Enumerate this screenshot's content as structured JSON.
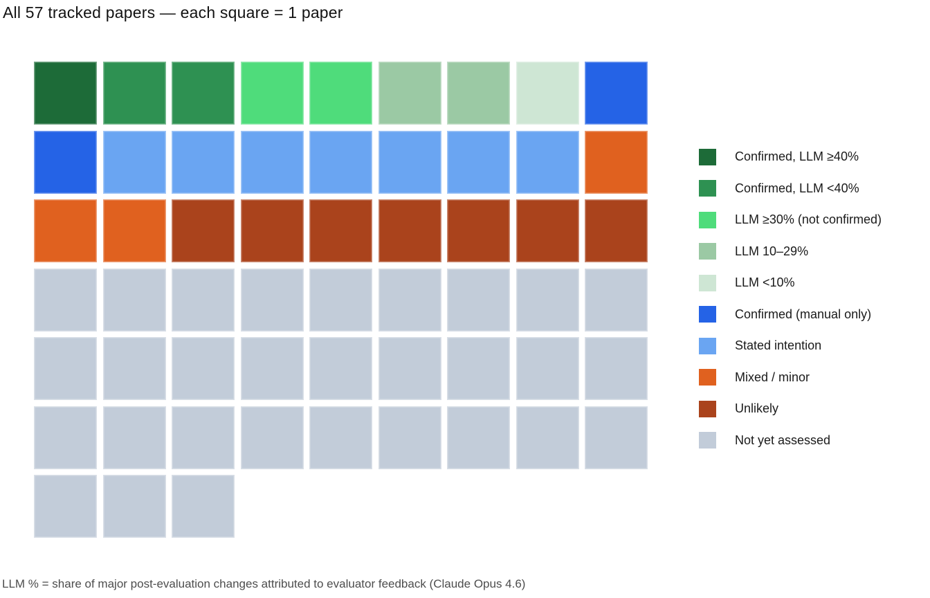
{
  "title": "All 57 tracked papers — each square = 1 paper",
  "footnote": "LLM % = share of major post-evaluation changes attributed to evaluator feedback (Claude Opus 4.6)",
  "chart_data": {
    "type": "waffle",
    "title": "All 57 tracked papers — each square = 1 paper",
    "total_squares": 57,
    "square_unit": "1 paper",
    "grid": {
      "columns": 9,
      "rows": 7,
      "fill_order": "row-major, top-left to bottom-right",
      "last_row_squares": 3
    },
    "categories": [
      "Confirmed, LLM ≥40%",
      "Confirmed, LLM <40%",
      "LLM ≥30% (not confirmed)",
      "LLM 10–29%",
      "LLM <10%",
      "Confirmed (manual only)",
      "Stated intention",
      "Mixed / minor",
      "Unlikely",
      "Not yet assessed"
    ],
    "values": [
      1,
      2,
      2,
      2,
      1,
      2,
      7,
      3,
      7,
      30
    ],
    "colors": [
      "#1d6b38",
      "#2e9152",
      "#4fdc7b",
      "#9bc9a4",
      "#cee6d4",
      "#2563e6",
      "#6aa5f2",
      "#e0611f",
      "#aa431c",
      "#c2ccd9"
    ],
    "legend_position": "right",
    "footnote": "LLM % = share of major post-evaluation changes attributed to evaluator feedback (Claude Opus 4.6)"
  },
  "legend": {
    "items": [
      {
        "label": "Confirmed, LLM ≥40%",
        "color": "#1d6b38",
        "count": 1
      },
      {
        "label": "Confirmed, LLM <40%",
        "color": "#2e9152",
        "count": 2
      },
      {
        "label": "LLM ≥30% (not confirmed)",
        "color": "#4fdc7b",
        "count": 2
      },
      {
        "label": "LLM 10–29%",
        "color": "#9bc9a4",
        "count": 2
      },
      {
        "label": "LLM <10%",
        "color": "#cee6d4",
        "count": 1
      },
      {
        "label": "Confirmed (manual only)",
        "color": "#2563e6",
        "count": 2
      },
      {
        "label": "Stated intention",
        "color": "#6aa5f2",
        "count": 7
      },
      {
        "label": "Mixed / minor",
        "color": "#e0611f",
        "count": 3
      },
      {
        "label": "Unlikely",
        "color": "#aa431c",
        "count": 7
      },
      {
        "label": "Not yet assessed",
        "color": "#c2ccd9",
        "count": 30
      }
    ]
  }
}
